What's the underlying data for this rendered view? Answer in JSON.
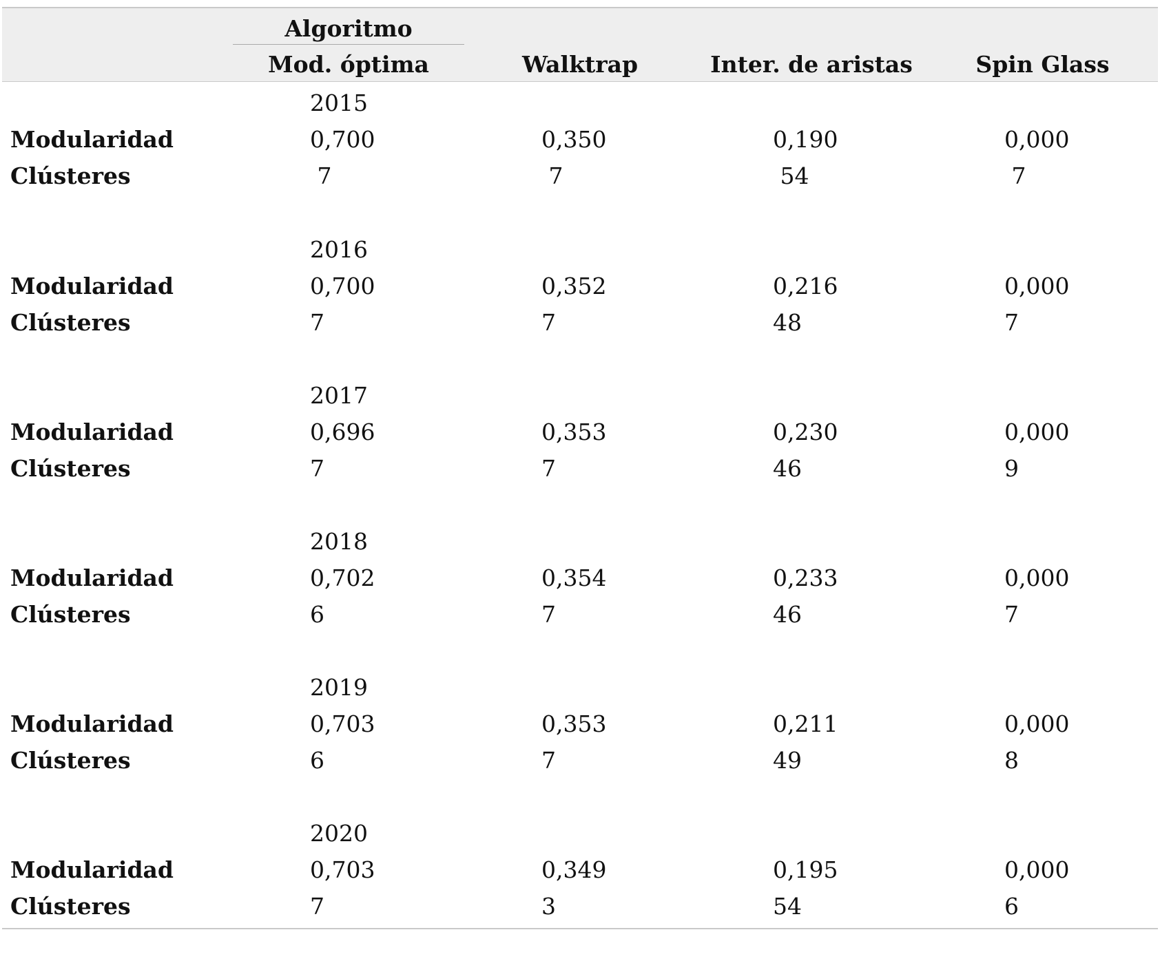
{
  "header": {
    "group_title": "Algoritmo",
    "columns": [
      "Mod. óptima",
      "Walktrap",
      "Inter. de aristas",
      "Spin Glass"
    ]
  },
  "row_labels": {
    "modularity": "Modularidad",
    "clusters": "Clústeres"
  },
  "years": [
    {
      "year": "2015",
      "modularidad": [
        "0,700",
        "0,350",
        "0,190",
        "0,000"
      ],
      "clusteres": [
        " 7",
        " 7",
        " 54",
        " 7"
      ]
    },
    {
      "year": "2016",
      "modularidad": [
        "0,700",
        "0,352",
        "0,216",
        "0,000"
      ],
      "clusteres": [
        "7",
        "7",
        "48",
        "7"
      ]
    },
    {
      "year": "2017",
      "modularidad": [
        "0,696",
        "0,353",
        "0,230",
        "0,000"
      ],
      "clusteres": [
        "7",
        "7",
        "46",
        "9"
      ]
    },
    {
      "year": "2018",
      "modularidad": [
        "0,702",
        "0,354",
        "0,233",
        "0,000"
      ],
      "clusteres": [
        "6",
        "7",
        "46",
        "7"
      ]
    },
    {
      "year": "2019",
      "modularidad": [
        "0,703",
        "0,353",
        "0,211",
        "0,000"
      ],
      "clusteres": [
        "6",
        "7",
        "49",
        "8"
      ]
    },
    {
      "year": "2020",
      "modularidad": [
        "0,703",
        "0,349",
        "0,195",
        "0,000"
      ],
      "clusteres": [
        "7",
        "3",
        "54",
        "6"
      ]
    }
  ]
}
